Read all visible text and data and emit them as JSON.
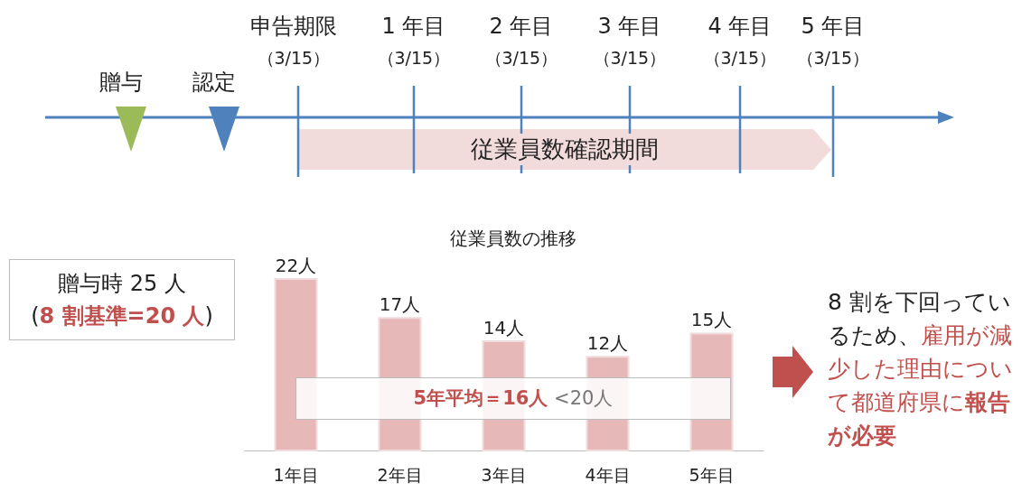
{
  "chart_data": {
    "type": "bar",
    "title": "従業員数の推移",
    "categories": [
      "1年目",
      "2年目",
      "3年目",
      "4年目",
      "5年目"
    ],
    "values": [
      22,
      17,
      14,
      12,
      15
    ],
    "value_labels": [
      "22人",
      "17人",
      "14人",
      "12人",
      "15人"
    ],
    "color": "#e6b9b8",
    "annotations": [
      "贈与",
      "認定",
      "申告期限",
      "（3/15）",
      "1 年目",
      "（3/15）",
      "2 年目",
      "（3/15）",
      "3 年目",
      "（3/15）",
      "4 年目",
      "（3/15）",
      "5 年目",
      "（3/15）",
      "従業員数確認期間",
      "贈与時 25 人",
      "(",
      "8 割基準=20 人",
      ")",
      "5年平均＝16人",
      "<20人",
      "8 割を下回っているため、",
      "雇用が減少した理由について都道府県に",
      "報告が必要"
    ]
  }
}
